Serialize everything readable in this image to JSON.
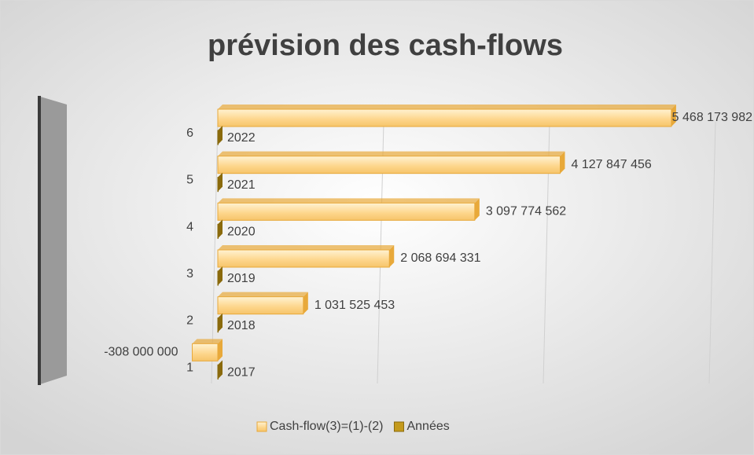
{
  "chart_data": {
    "type": "bar3d_horizontal",
    "title": "prévision des cash-flows",
    "categories": [
      "1",
      "2",
      "3",
      "4",
      "5",
      "6"
    ],
    "series": [
      {
        "name": "Cash-flow(3)=(1)-(2)",
        "color": "#fdd58a",
        "values": [
          -308000000,
          1031525453,
          2068694331,
          3097774562,
          4127847456,
          5468173982
        ],
        "value_labels": [
          "-308 000 000",
          "1 031 525 453",
          "2 068 694 331",
          "3 097 774 562",
          "4 127 847 456",
          "5 468 173 982"
        ]
      },
      {
        "name": "Années",
        "color": "#c49a1c",
        "values": [
          2017,
          2018,
          2019,
          2020,
          2021,
          2022
        ]
      }
    ],
    "xlim": [
      0,
      6000000000
    ],
    "xticks": [
      0,
      2000000000,
      4000000000,
      6000000000
    ],
    "grid": true,
    "legend": "bottom"
  }
}
